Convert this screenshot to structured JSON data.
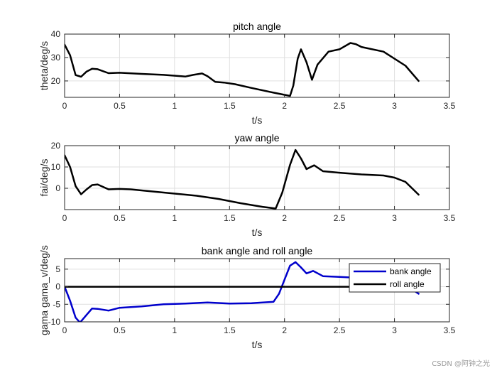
{
  "watermark": "CSDN @阿钟之光",
  "chart_data": [
    {
      "type": "line",
      "title": "pitch angle",
      "xlabel": "t/s",
      "ylabel": "theta/deg/s",
      "xlim": [
        0,
        3.5
      ],
      "ylim": [
        13,
        40
      ],
      "xticks": [
        0,
        0.5,
        1,
        1.5,
        2,
        2.5,
        3,
        3.5
      ],
      "yticks": [
        20,
        30,
        40
      ],
      "grid": true,
      "series": [
        {
          "color": "#000000",
          "x": [
            0,
            0.05,
            0.1,
            0.15,
            0.2,
            0.25,
            0.3,
            0.4,
            0.5,
            0.7,
            0.9,
            1.1,
            1.17,
            1.25,
            1.3,
            1.37,
            1.45,
            1.55,
            1.7,
            1.9,
            2.05,
            2.08,
            2.12,
            2.15,
            2.2,
            2.25,
            2.3,
            2.4,
            2.5,
            2.6,
            2.65,
            2.7,
            2.9,
            3.1,
            3.22
          ],
          "y": [
            35.5,
            31,
            22.5,
            21.8,
            24,
            25.2,
            25,
            23.3,
            23.5,
            23,
            22.6,
            21.9,
            22.6,
            23.2,
            22,
            19.6,
            19.3,
            18.6,
            17,
            15,
            13.6,
            18,
            29.5,
            33.5,
            28,
            20.5,
            27,
            32.5,
            33.5,
            36.2,
            35.7,
            34.5,
            32.5,
            26.5,
            20
          ]
        }
      ]
    },
    {
      "type": "line",
      "title": "yaw angle",
      "xlabel": "t/s",
      "ylabel": "fai/deg/s",
      "xlim": [
        0,
        3.5
      ],
      "ylim": [
        -10,
        20
      ],
      "xticks": [
        0,
        0.5,
        1,
        1.5,
        2,
        2.5,
        3,
        3.5
      ],
      "yticks": [
        0,
        10,
        20
      ],
      "grid": true,
      "series": [
        {
          "color": "#000000",
          "x": [
            0,
            0.05,
            0.1,
            0.15,
            0.2,
            0.25,
            0.3,
            0.4,
            0.5,
            0.6,
            0.8,
            1.0,
            1.2,
            1.4,
            1.6,
            1.8,
            1.92,
            1.98,
            2.05,
            2.1,
            2.15,
            2.2,
            2.27,
            2.35,
            2.5,
            2.7,
            2.9,
            3.0,
            3.1,
            3.22
          ],
          "y": [
            15.5,
            10,
            1,
            -2.8,
            -0.5,
            1.5,
            1.8,
            -0.5,
            -0.3,
            -0.5,
            -1.5,
            -2.5,
            -3.5,
            -5,
            -7,
            -8.7,
            -9.5,
            -2,
            11,
            18,
            14,
            9,
            10.8,
            8,
            7.3,
            6.5,
            6,
            5,
            3,
            -3
          ]
        }
      ]
    },
    {
      "type": "line",
      "title": "bank angle and roll angle",
      "xlabel": "t/s",
      "ylabel": "gama gama_v/deg/s",
      "xlim": [
        0,
        3.5
      ],
      "ylim": [
        -10,
        8
      ],
      "xticks": [
        0,
        0.5,
        1,
        1.5,
        2,
        2.5,
        3,
        3.5
      ],
      "yticks": [
        -10,
        -5,
        0,
        5
      ],
      "grid": true,
      "legend": "top-right",
      "series": [
        {
          "name": "bank angle",
          "color": "#0000cc",
          "x": [
            0,
            0.05,
            0.1,
            0.14,
            0.2,
            0.25,
            0.3,
            0.4,
            0.5,
            0.7,
            0.9,
            1.1,
            1.3,
            1.5,
            1.7,
            1.9,
            1.95,
            2.0,
            2.05,
            2.1,
            2.15,
            2.2,
            2.26,
            2.35,
            2.5,
            2.7,
            2.9,
            3.1,
            3.22
          ],
          "y": [
            0,
            -4,
            -8.8,
            -10.2,
            -8,
            -6.2,
            -6.3,
            -6.8,
            -6,
            -5.6,
            -5,
            -4.8,
            -4.5,
            -4.8,
            -4.7,
            -4.3,
            -2,
            2,
            6,
            7,
            5.5,
            3.8,
            4.5,
            3,
            2.8,
            2.5,
            1.5,
            0.5,
            -2
          ]
        },
        {
          "name": "roll angle",
          "color": "#000000",
          "x": [
            0,
            3.22
          ],
          "y": [
            0,
            0
          ]
        }
      ]
    }
  ]
}
